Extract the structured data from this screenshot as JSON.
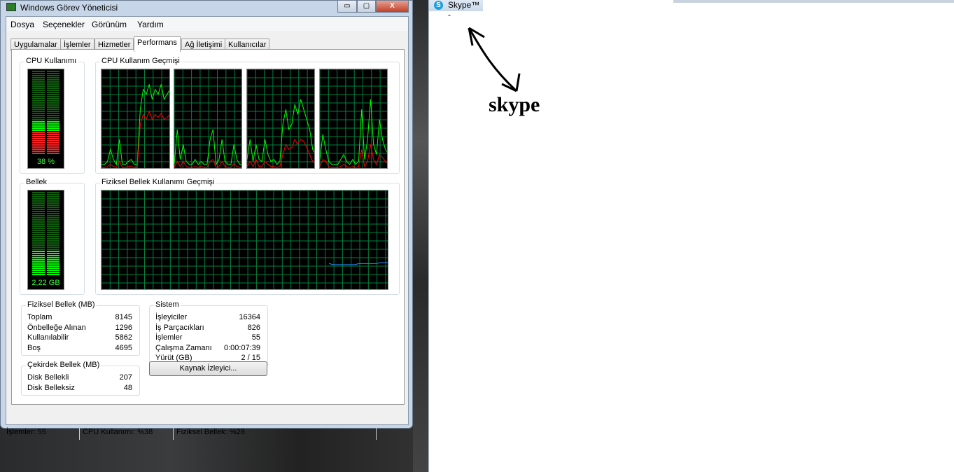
{
  "window": {
    "title": "Windows Görev Yöneticisi",
    "minimize": "▭",
    "maximize": "▢",
    "close": "X"
  },
  "menu": [
    "Dosya",
    "Seçenekler",
    "Görünüm",
    "Yardım"
  ],
  "tabs": [
    "Uygulamalar",
    "İşlemler",
    "Hizmetler",
    "Performans",
    "Ağ İletişimi",
    "Kullanıcılar"
  ],
  "active_tab": "Performans",
  "cpu": {
    "label": "CPU Kullanımı",
    "value": "38 %",
    "percent": 38,
    "history_label": "CPU Kullanım Geçmişi",
    "history": [
      {
        "total": [
          5,
          5,
          8,
          20,
          10,
          5,
          30,
          5,
          5,
          8,
          10,
          5,
          5,
          60,
          80,
          75,
          85,
          70,
          80,
          75,
          85,
          70,
          75,
          80
        ],
        "kernel": [
          2,
          2,
          3,
          5,
          3,
          2,
          8,
          2,
          2,
          3,
          3,
          2,
          2,
          45,
          55,
          50,
          58,
          50,
          55,
          52,
          56,
          50,
          52,
          55
        ]
      },
      {
        "total": [
          5,
          40,
          10,
          25,
          8,
          5,
          5,
          10,
          5,
          8,
          5,
          5,
          30,
          40,
          5,
          10,
          30,
          8,
          5,
          5,
          25,
          10,
          5,
          5
        ],
        "kernel": [
          2,
          8,
          3,
          8,
          3,
          2,
          2,
          3,
          2,
          3,
          2,
          2,
          8,
          10,
          2,
          3,
          8,
          3,
          2,
          2,
          6,
          3,
          2,
          2
        ]
      },
      {
        "total": [
          10,
          30,
          8,
          25,
          10,
          8,
          30,
          15,
          8,
          10,
          5,
          8,
          45,
          60,
          40,
          45,
          65,
          55,
          70,
          60,
          50,
          40,
          20,
          15
        ],
        "kernel": [
          3,
          8,
          3,
          10,
          3,
          3,
          8,
          5,
          3,
          3,
          2,
          3,
          15,
          25,
          20,
          22,
          30,
          25,
          30,
          28,
          22,
          15,
          8,
          5
        ]
      },
      {
        "total": [
          10,
          35,
          20,
          8,
          5,
          5,
          5,
          10,
          15,
          8,
          5,
          10,
          5,
          8,
          60,
          10,
          30,
          70,
          25,
          15,
          50,
          30,
          20,
          15
        ],
        "kernel": [
          3,
          10,
          8,
          3,
          2,
          2,
          2,
          3,
          5,
          3,
          2,
          3,
          2,
          3,
          20,
          3,
          8,
          25,
          10,
          5,
          15,
          12,
          8,
          5
        ]
      }
    ]
  },
  "memory": {
    "label": "Bellek",
    "value": "2,22 GB",
    "percent": 28,
    "history_label": "Fiziksel Bellek Kullanımı Geçmişi",
    "history": [
      27,
      26,
      26,
      26,
      26,
      26,
      26,
      27,
      27,
      27,
      27,
      27,
      28,
      28,
      28
    ]
  },
  "physical_memory": {
    "title": "Fiziksel Bellek (MB)",
    "rows": [
      [
        "Toplam",
        "8145"
      ],
      [
        "Önbelleğe Alınan",
        "1296"
      ],
      [
        "Kullanılabilir",
        "5862"
      ],
      [
        "Boş",
        "4695"
      ]
    ]
  },
  "kernel_memory": {
    "title": "Çekirdek Bellek (MB)",
    "rows": [
      [
        "Disk Bellekli",
        "207"
      ],
      [
        "Disk Belleksiz",
        "48"
      ]
    ]
  },
  "system": {
    "title": "Sistem",
    "rows": [
      [
        "İşleyiciler",
        "16364"
      ],
      [
        "İş Parçacıkları",
        "826"
      ],
      [
        "İşlemler",
        "55"
      ],
      [
        "Çalışma Zamanı",
        "0:00:07:39"
      ],
      [
        "Yürüt (GB)",
        "2 / 15"
      ]
    ]
  },
  "resource_monitor_button": "Kaynak İzleyici...",
  "status": {
    "processes": "İşlemler: 55",
    "cpu": "CPU Kullanımı: %38",
    "memory": "Fiziksel Bellek: %28"
  },
  "skype": {
    "title": "Skype™ -",
    "icon": "S"
  },
  "annotation": "skype",
  "colors": {
    "graph_bg": "#000000",
    "grid": "#008040",
    "cpu_line": "#00ff00",
    "kernel_line": "#ff0000",
    "memory_line": "#1e90ff"
  }
}
